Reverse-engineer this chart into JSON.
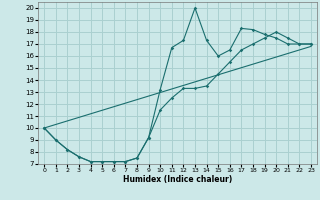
{
  "xlabel": "Humidex (Indice chaleur)",
  "bg_color": "#cce8e8",
  "grid_color": "#aad0d0",
  "line_color": "#1a6e6e",
  "xlim": [
    -0.5,
    23.5
  ],
  "ylim": [
    7,
    20.5
  ],
  "xticks": [
    0,
    1,
    2,
    3,
    4,
    5,
    6,
    7,
    8,
    9,
    10,
    11,
    12,
    13,
    14,
    15,
    16,
    17,
    18,
    19,
    20,
    21,
    22,
    23
  ],
  "yticks": [
    7,
    8,
    9,
    10,
    11,
    12,
    13,
    14,
    15,
    16,
    17,
    18,
    19,
    20
  ],
  "curve1_x": [
    0,
    1,
    2,
    3,
    4,
    5,
    6,
    7,
    8,
    9,
    10,
    11,
    12,
    13,
    14,
    15,
    16,
    17,
    18,
    19,
    20,
    21,
    22,
    23
  ],
  "curve1_y": [
    10,
    9.0,
    8.2,
    7.6,
    7.2,
    7.2,
    7.2,
    7.2,
    7.5,
    9.2,
    13.2,
    16.7,
    17.3,
    20.0,
    17.3,
    16.0,
    16.5,
    18.3,
    18.2,
    17.8,
    17.5,
    17.0,
    17.0,
    17.0
  ],
  "curve2_x": [
    0,
    1,
    2,
    3,
    4,
    5,
    6,
    7,
    8,
    9,
    10,
    11,
    12,
    13,
    14,
    15,
    16,
    17,
    18,
    19,
    20,
    21,
    22,
    23
  ],
  "curve2_y": [
    10,
    9.0,
    8.2,
    7.6,
    7.2,
    7.2,
    7.2,
    7.2,
    7.5,
    9.2,
    11.5,
    12.5,
    13.3,
    13.3,
    13.5,
    14.5,
    15.5,
    16.5,
    17.0,
    17.5,
    18.0,
    17.5,
    17.0,
    17.0
  ],
  "curve3_x": [
    0,
    23
  ],
  "curve3_y": [
    10.0,
    16.8
  ]
}
